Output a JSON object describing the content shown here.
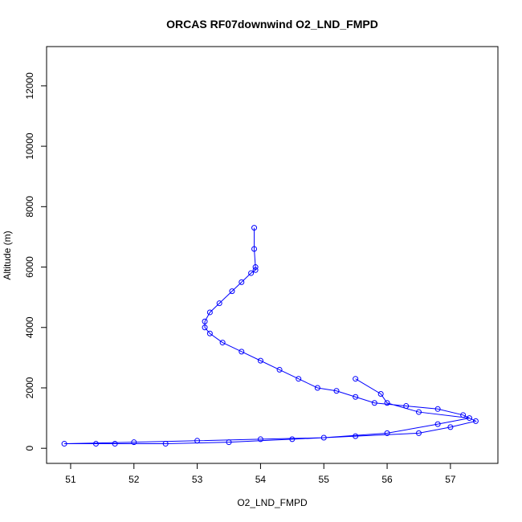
{
  "chart_data": {
    "type": "scatter",
    "title": "ORCAS RF07downwind O2_LND_FMPD",
    "x_label": "O2_LND_FMPD",
    "y_label": "Altitude (m)",
    "color": "#0000ff",
    "x": [
      53.9,
      53.9,
      53.92,
      53.92,
      53.85,
      53.7,
      53.55,
      53.35,
      53.2,
      53.12,
      53.12,
      53.2,
      53.4,
      53.7,
      54.0,
      54.3,
      54.6,
      54.9,
      55.2,
      55.5,
      55.8,
      56.3,
      56.8,
      57.2,
      57.4,
      57.0,
      56.5,
      55.5,
      54.5,
      53.5,
      52.5,
      51.7,
      51.4,
      50.9,
      52.0,
      53.0,
      54.0,
      55.0,
      56.0,
      56.8,
      57.3,
      56.5,
      56.0,
      55.9,
      55.5
    ],
    "y": [
      7300,
      6600,
      6000,
      5900,
      5800,
      5500,
      5200,
      4800,
      4500,
      4200,
      4000,
      3800,
      3500,
      3200,
      2900,
      2600,
      2300,
      2000,
      1900,
      1700,
      1500,
      1400,
      1300,
      1100,
      900,
      700,
      500,
      400,
      300,
      200,
      150,
      150,
      150,
      150,
      200,
      250,
      300,
      350,
      500,
      800,
      1000,
      1200,
      1500,
      1800,
      2300
    ],
    "xlim": [
      50.62,
      57.75
    ],
    "ylim": [
      -500,
      13300
    ],
    "xticks": [
      51,
      52,
      53,
      54,
      55,
      56,
      57
    ],
    "yticks": [
      0,
      2000,
      4000,
      6000,
      8000,
      10000,
      12000
    ]
  }
}
